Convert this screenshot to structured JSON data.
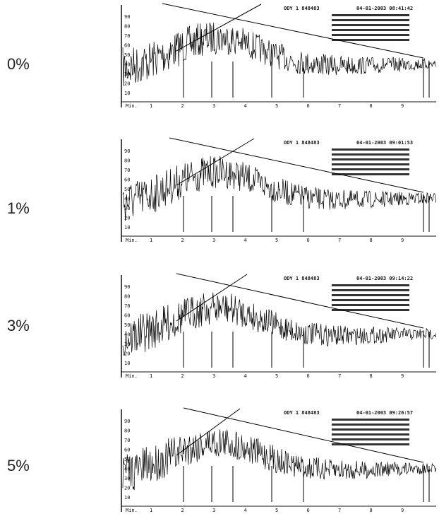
{
  "panels": [
    {
      "label": "0%",
      "header": "ODY 1 848483",
      "timestamp": "04-01-2003 08:41:42"
    },
    {
      "label": "1%",
      "header": "ODY 1 848483",
      "timestamp": "04-01-2003 09:01:53"
    },
    {
      "label": "3%",
      "header": "ODY 1 848483",
      "timestamp": "04-01-2003 09:14:22"
    },
    {
      "label": "5%",
      "header": "ODY 1 848483",
      "timestamp": "04-01-2003 09:26:57"
    }
  ],
  "x_axis": {
    "title": "Min.",
    "tick_labels": [
      "1",
      "2",
      "3",
      "4",
      "5",
      "6",
      "7",
      "8",
      "9"
    ]
  },
  "y_axis": {
    "tick_labels": [
      "10",
      "20",
      "30",
      "40",
      "50",
      "60",
      "70",
      "80",
      "90"
    ]
  }
}
